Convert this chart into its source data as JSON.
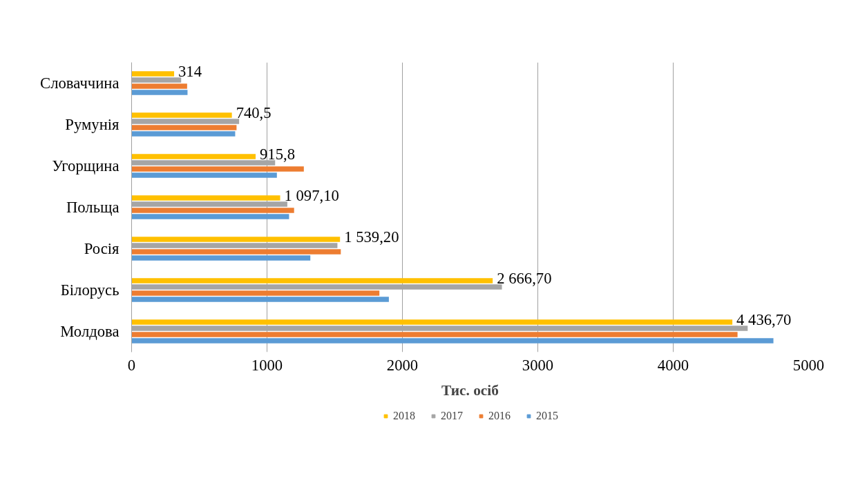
{
  "chart_data": {
    "type": "bar",
    "orientation": "horizontal",
    "xlabel": "Тис. осіб",
    "categories": [
      "Словаччина",
      "Румунія",
      "Угорщина",
      "Польща",
      "Росія",
      "Білорусь",
      "Молдова"
    ],
    "series": [
      {
        "name": "2018",
        "color": "#ffc000",
        "values": [
          314,
          740.5,
          915.8,
          1097.1,
          1539.2,
          2666.7,
          4436.7
        ],
        "value_labels": [
          "314",
          "740,5",
          "915,8",
          "1 097,10",
          "1 539,20",
          "2 666,70",
          "4 436,70"
        ]
      },
      {
        "name": "2017",
        "color": "#a5a5a5",
        "values": [
          366,
          794,
          1060,
          1150,
          1520,
          2735,
          4550
        ]
      },
      {
        "name": "2016",
        "color": "#ed7d31",
        "values": [
          410,
          775,
          1272,
          1200,
          1545,
          1830,
          4475
        ]
      },
      {
        "name": "2015",
        "color": "#5b9bd5",
        "values": [
          413,
          765,
          1073,
          1163,
          1320,
          1900,
          4740
        ]
      }
    ],
    "xlim": [
      0,
      5000
    ],
    "xticks": [
      0,
      1000,
      2000,
      3000,
      4000,
      5000
    ],
    "grid": "x",
    "legend": "bottom"
  }
}
